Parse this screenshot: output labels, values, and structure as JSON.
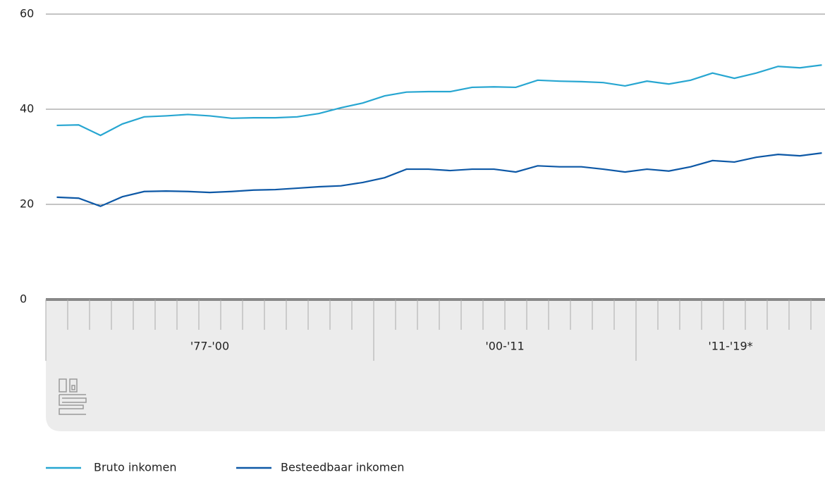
{
  "chart_data": {
    "type": "line",
    "categories": [
      null,
      null,
      null,
      null,
      null,
      null,
      null,
      null,
      null,
      null,
      null,
      null,
      null,
      null,
      null,
      null,
      null,
      null,
      null,
      null,
      null,
      null,
      null,
      null,
      null,
      null,
      null,
      null,
      null,
      null,
      null,
      null,
      null,
      null,
      null,
      null
    ],
    "groups": [
      {
        "label": "'77-'00",
        "span": 15
      },
      {
        "label": "'00-'11",
        "span": 12
      },
      {
        "label": "'11-'19*",
        "span": 9
      }
    ],
    "series": [
      {
        "name": "Bruto inkomen",
        "color": "#27a6d1",
        "values": [
          36.6,
          36.7,
          34.5,
          36.9,
          38.4,
          38.6,
          38.9,
          38.6,
          38.1,
          38.2,
          38.2,
          38.4,
          39.1,
          40.3,
          41.3,
          42.8,
          43.6,
          43.7,
          43.7,
          44.6,
          44.7,
          44.6,
          46.1,
          45.9,
          45.8,
          45.6,
          44.9,
          45.9,
          45.3,
          46.1,
          47.6,
          46.5,
          47.6,
          49.0,
          48.7,
          49.3
        ]
      },
      {
        "name": "Besteedbaar inkomen",
        "color": "#0d58a6",
        "values": [
          21.5,
          21.3,
          19.6,
          21.6,
          22.7,
          22.8,
          22.7,
          22.5,
          22.7,
          23.0,
          23.1,
          23.4,
          23.7,
          23.9,
          24.6,
          25.6,
          27.4,
          27.4,
          27.1,
          27.4,
          27.4,
          26.8,
          28.1,
          27.9,
          27.9,
          27.4,
          26.8,
          27.4,
          27.0,
          27.9,
          29.2,
          28.9,
          29.9,
          30.5,
          30.2,
          30.8
        ]
      }
    ],
    "ylim": [
      0,
      60
    ],
    "yticks": [
      0,
      20,
      40,
      60
    ],
    "grid": true
  }
}
